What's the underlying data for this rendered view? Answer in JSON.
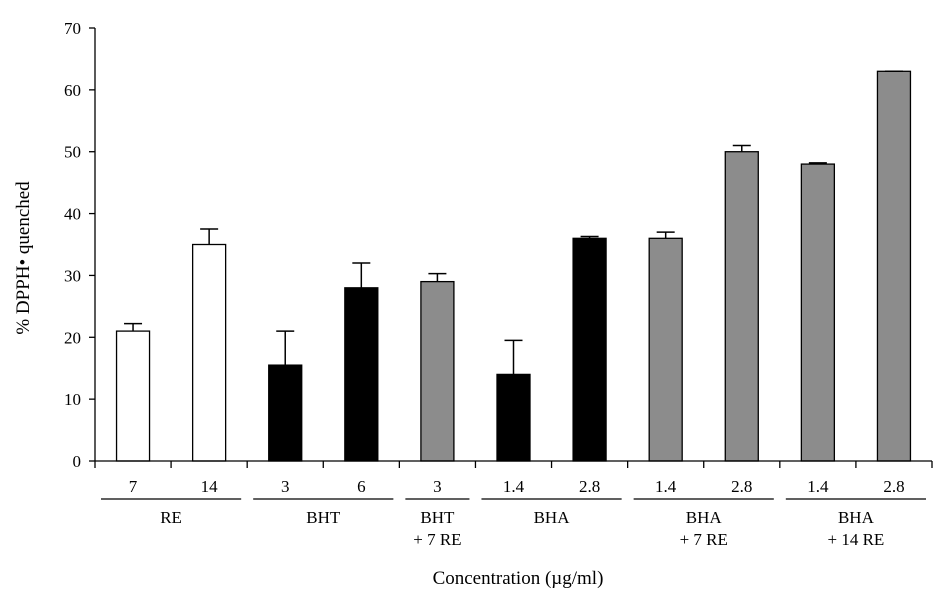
{
  "chart_data": {
    "type": "bar",
    "xlabel": "Concentration (µg/ml)",
    "ylabel": "% DPPH• quenched",
    "ylim": [
      0,
      70
    ],
    "y_ticks": [
      0,
      10,
      20,
      30,
      40,
      50,
      60,
      70
    ],
    "grid": false,
    "bars": [
      {
        "category": "7",
        "group": "RE",
        "value": 21,
        "error": 1.2,
        "fill": "#ffffff"
      },
      {
        "category": "14",
        "group": "RE",
        "value": 35,
        "error": 2.5,
        "fill": "#ffffff"
      },
      {
        "category": "3",
        "group": "BHT",
        "value": 15.5,
        "error": 5.5,
        "fill": "#000000"
      },
      {
        "category": "6",
        "group": "BHT",
        "value": 28,
        "error": 4,
        "fill": "#000000"
      },
      {
        "category": "3",
        "group": "BHT + 7 RE",
        "value": 29,
        "error": 1.3,
        "fill": "#8c8c8c"
      },
      {
        "category": "1.4",
        "group": "BHA",
        "value": 14,
        "error": 5.5,
        "fill": "#000000"
      },
      {
        "category": "2.8",
        "group": "BHA",
        "value": 36,
        "error": 0.3,
        "fill": "#000000"
      },
      {
        "category": "1.4",
        "group": "BHA + 7 RE",
        "value": 36,
        "error": 1,
        "fill": "#8c8c8c"
      },
      {
        "category": "2.8",
        "group": "BHA + 7 RE",
        "value": 50,
        "error": 1,
        "fill": "#8c8c8c"
      },
      {
        "category": "1.4",
        "group": "BHA + 14 RE",
        "value": 48,
        "error": 0.2,
        "fill": "#8c8c8c"
      },
      {
        "category": "2.8",
        "group": "BHA + 14 RE",
        "value": 63,
        "error": 0,
        "fill": "#8c8c8c"
      }
    ],
    "groups": [
      {
        "lines": [
          "RE"
        ],
        "start": 0,
        "end": 1
      },
      {
        "lines": [
          "BHT"
        ],
        "start": 2,
        "end": 3
      },
      {
        "lines": [
          "BHT",
          "+ 7 RE"
        ],
        "start": 4,
        "end": 4
      },
      {
        "lines": [
          "BHA"
        ],
        "start": 5,
        "end": 6
      },
      {
        "lines": [
          "BHA",
          "+ 7 RE"
        ],
        "start": 7,
        "end": 8
      },
      {
        "lines": [
          "BHA",
          "+ 14 RE"
        ],
        "start": 9,
        "end": 10
      }
    ]
  }
}
